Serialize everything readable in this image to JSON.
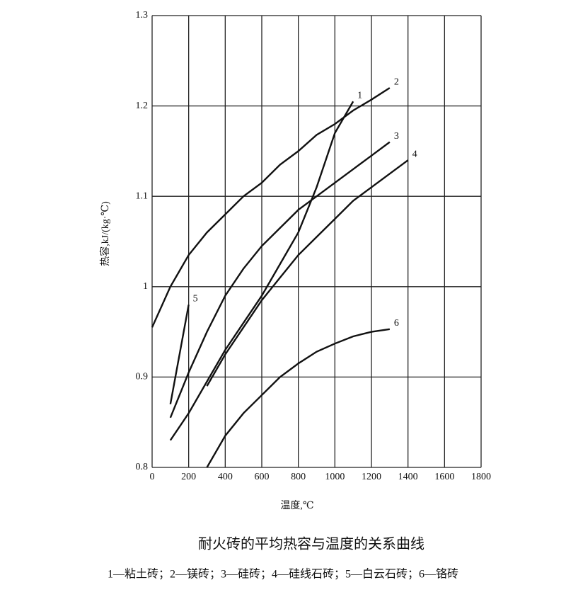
{
  "chart_data": {
    "type": "line",
    "title": "耐火砖的平均热容与温度的关系曲线",
    "caption": "1—粘土砖；2—镁砖；3—硅砖；4—硅线石砖；5—白云石砖；6—铬砖",
    "x_label": "温度,℃",
    "y_label": "热容,kJ/(kg·℃)",
    "x": [
      0,
      100,
      200,
      300,
      400,
      500,
      600,
      700,
      800,
      900,
      1000,
      1100,
      1200,
      1300,
      1400
    ],
    "series": [
      {
        "name": "1",
        "color": "#111111",
        "values": [
          null,
          0.83,
          0.86,
          0.895,
          0.93,
          0.96,
          0.99,
          1.025,
          1.06,
          1.11,
          1.17,
          1.205,
          null,
          null,
          null
        ]
      },
      {
        "name": "2",
        "color": "#111111",
        "values": [
          0.955,
          1.0,
          1.035,
          1.06,
          1.08,
          1.1,
          1.115,
          1.135,
          1.15,
          1.168,
          1.18,
          1.195,
          1.207,
          1.22,
          null
        ]
      },
      {
        "name": "3",
        "color": "#111111",
        "values": [
          null,
          0.855,
          0.905,
          0.95,
          0.99,
          1.02,
          1.045,
          1.065,
          1.085,
          1.1,
          1.115,
          1.13,
          1.145,
          1.16,
          null
        ]
      },
      {
        "name": "4",
        "color": "#111111",
        "values": [
          null,
          null,
          null,
          0.89,
          0.925,
          0.955,
          0.985,
          1.01,
          1.035,
          1.055,
          1.075,
          1.095,
          1.11,
          1.125,
          1.14
        ]
      },
      {
        "name": "5",
        "color": "#111111",
        "values": [
          null,
          0.87,
          0.98,
          null,
          null,
          null,
          null,
          null,
          null,
          null,
          null,
          null,
          null,
          null,
          null
        ]
      },
      {
        "name": "6",
        "color": "#111111",
        "values": [
          null,
          null,
          null,
          0.8,
          0.835,
          0.86,
          0.88,
          0.9,
          0.915,
          0.928,
          0.937,
          0.945,
          0.95,
          0.953,
          null
        ]
      }
    ],
    "xlim": [
      0,
      1800
    ],
    "xticks": [
      0,
      200,
      400,
      600,
      800,
      1000,
      1200,
      1400,
      1600,
      1800
    ],
    "ylim": [
      0.8,
      1.3
    ],
    "yticks": [
      0.8,
      0.9,
      1,
      1.1,
      1.2,
      1.3
    ],
    "grid": true
  }
}
